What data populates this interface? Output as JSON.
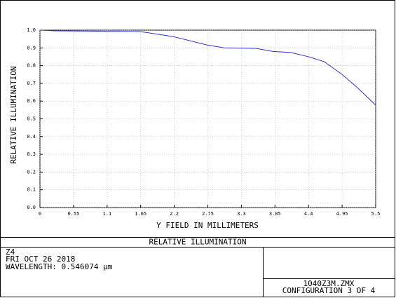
{
  "chart_data": {
    "type": "line",
    "title": "RELATIVE ILLUMINATION",
    "xlabel": "Y FIELD IN MILLIMETERS",
    "ylabel": "RELATIVE ILLUMINATION",
    "x": [
      0,
      0.26,
      1.64,
      2.18,
      2.73,
      3.02,
      3.54,
      3.82,
      4.11,
      4.4,
      4.66,
      4.95,
      5.2,
      5.5
    ],
    "values": [
      1.0,
      0.996,
      0.992,
      0.964,
      0.917,
      0.9,
      0.897,
      0.88,
      0.874,
      0.85,
      0.822,
      0.75,
      0.676,
      0.577
    ],
    "color": "#2f2fd0",
    "xlim": [
      0,
      5.5
    ],
    "xticks": [
      0,
      0.55,
      1.1,
      1.65,
      2.2,
      2.75,
      3.3,
      3.85,
      4.4,
      4.95,
      5.5
    ],
    "ylim": [
      0,
      1
    ],
    "yticks": [
      {
        "value": 0,
        "label": "0.0"
      },
      0.1,
      0.2,
      0.3,
      0.4,
      0.5,
      0.6,
      0.7,
      0.8,
      0.9,
      {
        "value": 1,
        "label": "1.0"
      }
    ],
    "grid": true
  },
  "footer": {
    "lines": [
      "Z4",
      "FRI OCT 26 2018",
      "WAVELENGTH: 0.546074 µm"
    ],
    "file": "1040Z3M.ZMX",
    "configuration": "CONFIGURATION 3 OF 4"
  }
}
